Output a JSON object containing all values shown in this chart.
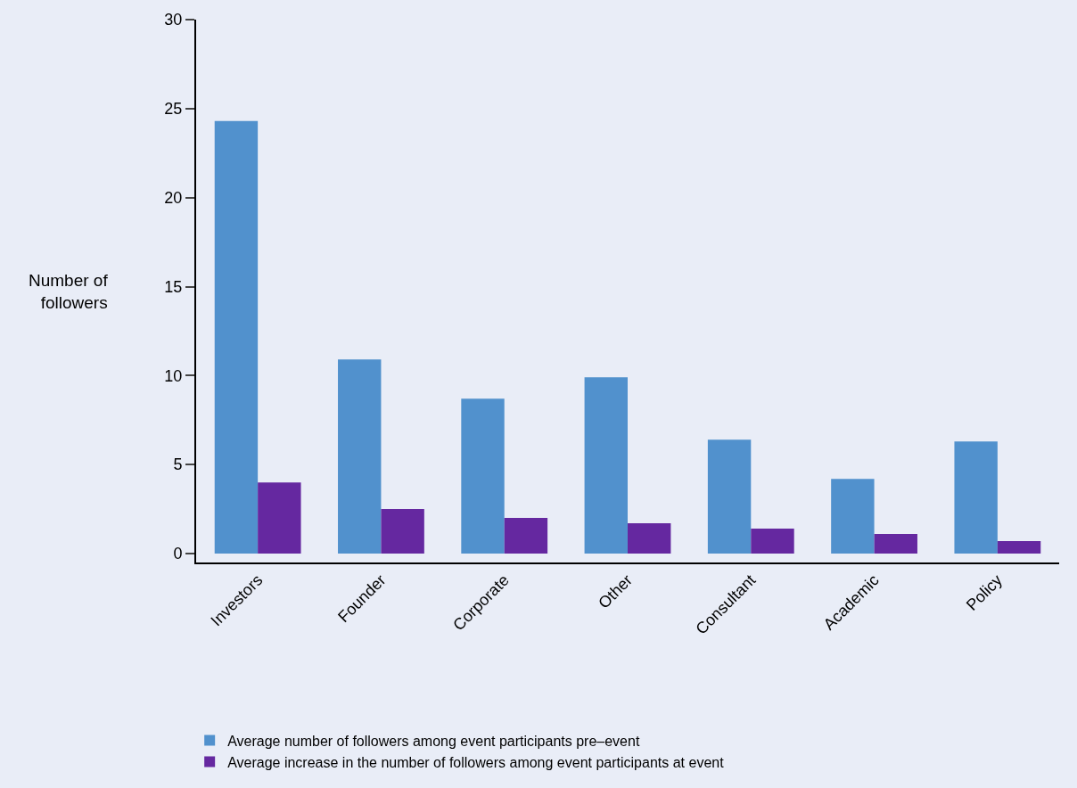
{
  "chart_data": {
    "type": "bar",
    "ylabel": "Number of\nfollowers",
    "categories": [
      "Investors",
      "Founder",
      "Corporate",
      "Other",
      "Consultant",
      "Academic",
      "Policy"
    ],
    "series": [
      {
        "name": "Average number of followers among event participants pre–event",
        "color": "#5191cd",
        "values": [
          24.3,
          10.9,
          8.7,
          9.9,
          6.4,
          4.2,
          6.3
        ]
      },
      {
        "name": "Average increase in the number of followers among event participants at event",
        "color": "#6528a0",
        "values": [
          4.0,
          2.5,
          2.0,
          1.7,
          1.4,
          1.1,
          0.7
        ]
      }
    ],
    "ylim": [
      -0.5,
      30
    ],
    "yticks": [
      0,
      5,
      10,
      15,
      20,
      25,
      30
    ],
    "grid": false,
    "legend": "bottom"
  }
}
